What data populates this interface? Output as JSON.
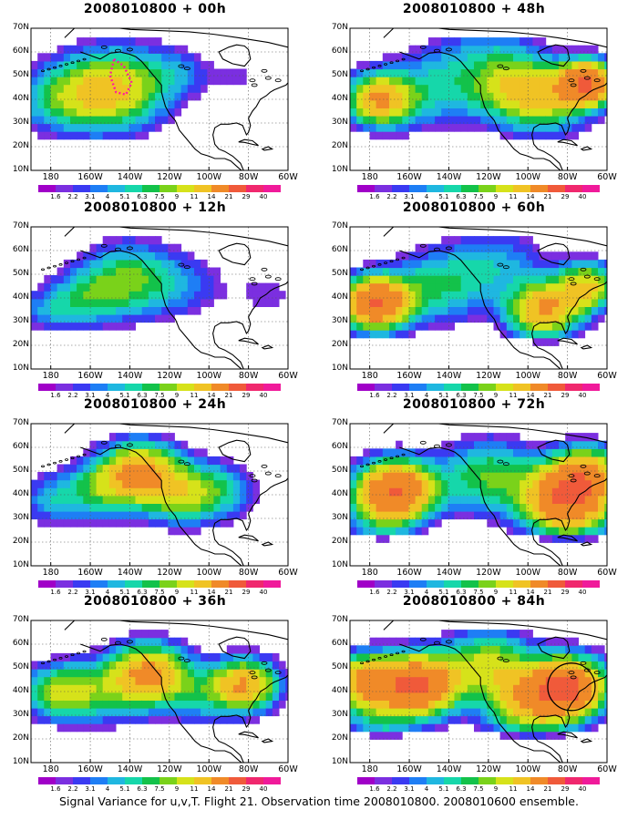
{
  "caption": "Signal Variance for u,v,T. Flight 21. Observation time 2008010800. 2008010600 ensemble.",
  "lat_labels": [
    "70N",
    "60N",
    "50N",
    "40N",
    "30N",
    "20N",
    "10N"
  ],
  "lon_labels": [
    "180",
    "160W",
    "140W",
    "120W",
    "100W",
    "80W",
    "60W"
  ],
  "colorbar_labels": [
    "1.6",
    "2.2",
    "3.1",
    "4",
    "5.1",
    "6.3",
    "7.5",
    "9",
    "11",
    "14",
    "21",
    "29",
    "40"
  ],
  "colorbar_colors": [
    "#a000c8",
    "#7b2fe0",
    "#3a3af2",
    "#1e7ef5",
    "#1fb7e0",
    "#16d7aa",
    "#13c24a",
    "#7ad21a",
    "#d6e21a",
    "#f0c324",
    "#f08a28",
    "#f05a3a",
    "#f0286e",
    "#f01a9a"
  ],
  "colormap_thresholds": [
    1.6,
    2.2,
    3.1,
    4,
    5.1,
    6.3,
    7.5,
    9,
    11,
    14,
    21,
    29,
    40
  ],
  "map_domain": {
    "lon_min": 170,
    "lon_max": 300,
    "lat_min": 10,
    "lat_max": 70
  },
  "panels": [
    {
      "title": "2008010800 + 00h",
      "hour": 0,
      "blobs": [
        {
          "lon": 215,
          "lat": 45,
          "r": 22,
          "v": 9
        },
        {
          "lon": 198,
          "lat": 42,
          "r": 20,
          "v": 5
        },
        {
          "lon": 180,
          "lat": 40,
          "r": 18,
          "v": 3.5
        },
        {
          "lon": 245,
          "lat": 52,
          "r": 14,
          "v": 2.5
        },
        {
          "lon": 275,
          "lat": 50,
          "r": 12,
          "v": 1.8
        }
      ]
    },
    {
      "title": "2008010800 + 48h",
      "hour": 48,
      "blobs": [
        {
          "lon": 185,
          "lat": 40,
          "r": 14,
          "v": 14
        },
        {
          "lon": 255,
          "lat": 45,
          "r": 18,
          "v": 9
        },
        {
          "lon": 290,
          "lat": 47,
          "r": 12,
          "v": 21
        },
        {
          "lon": 215,
          "lat": 45,
          "r": 22,
          "v": 5
        },
        {
          "lon": 270,
          "lat": 38,
          "r": 18,
          "v": 6
        },
        {
          "lon": 240,
          "lat": 60,
          "r": 20,
          "v": 3
        }
      ]
    },
    {
      "title": "2008010800 + 12h",
      "hour": 12,
      "blobs": [
        {
          "lon": 220,
          "lat": 48,
          "r": 20,
          "v": 7.5
        },
        {
          "lon": 198,
          "lat": 40,
          "r": 15,
          "v": 5
        },
        {
          "lon": 178,
          "lat": 35,
          "r": 12,
          "v": 3.5
        },
        {
          "lon": 250,
          "lat": 45,
          "r": 18,
          "v": 2.5
        },
        {
          "lon": 290,
          "lat": 42,
          "r": 14,
          "v": 2
        }
      ]
    },
    {
      "title": "2008010800 + 60h",
      "hour": 60,
      "blobs": [
        {
          "lon": 183,
          "lat": 38,
          "r": 14,
          "v": 21
        },
        {
          "lon": 268,
          "lat": 35,
          "r": 15,
          "v": 14
        },
        {
          "lon": 290,
          "lat": 45,
          "r": 13,
          "v": 11
        },
        {
          "lon": 215,
          "lat": 45,
          "r": 20,
          "v": 6
        },
        {
          "lon": 245,
          "lat": 55,
          "r": 20,
          "v": 4
        }
      ]
    },
    {
      "title": "2008010800 + 24h",
      "hour": 24,
      "blobs": [
        {
          "lon": 225,
          "lat": 50,
          "r": 16,
          "v": 14
        },
        {
          "lon": 205,
          "lat": 42,
          "r": 16,
          "v": 6
        },
        {
          "lon": 180,
          "lat": 38,
          "r": 14,
          "v": 4
        },
        {
          "lon": 265,
          "lat": 42,
          "r": 16,
          "v": 5
        },
        {
          "lon": 245,
          "lat": 40,
          "r": 16,
          "v": 7.5
        }
      ]
    },
    {
      "title": "2008010800 + 72h",
      "hour": 72,
      "blobs": [
        {
          "lon": 193,
          "lat": 42,
          "r": 16,
          "v": 21
        },
        {
          "lon": 280,
          "lat": 38,
          "r": 18,
          "v": 21
        },
        {
          "lon": 240,
          "lat": 48,
          "r": 20,
          "v": 7.5
        },
        {
          "lon": 290,
          "lat": 50,
          "r": 14,
          "v": 11
        },
        {
          "lon": 185,
          "lat": 30,
          "r": 14,
          "v": 4
        }
      ]
    },
    {
      "title": "2008010800 + 36h",
      "hour": 36,
      "blobs": [
        {
          "lon": 230,
          "lat": 48,
          "r": 16,
          "v": 14
        },
        {
          "lon": 185,
          "lat": 40,
          "r": 15,
          "v": 9
        },
        {
          "lon": 278,
          "lat": 43,
          "r": 14,
          "v": 14
        },
        {
          "lon": 210,
          "lat": 40,
          "r": 18,
          "v": 5
        },
        {
          "lon": 255,
          "lat": 38,
          "r": 16,
          "v": 4
        }
      ]
    },
    {
      "title": "2008010800 + 84h",
      "hour": 84,
      "blobs": [
        {
          "lon": 205,
          "lat": 43,
          "r": 16,
          "v": 21
        },
        {
          "lon": 178,
          "lat": 45,
          "r": 14,
          "v": 14
        },
        {
          "lon": 280,
          "lat": 42,
          "r": 16,
          "v": 21
        },
        {
          "lon": 240,
          "lat": 52,
          "r": 18,
          "v": 9
        },
        {
          "lon": 260,
          "lat": 35,
          "r": 18,
          "v": 11
        },
        {
          "lon": 185,
          "lat": 30,
          "r": 16,
          "v": 5
        }
      ]
    }
  ]
}
